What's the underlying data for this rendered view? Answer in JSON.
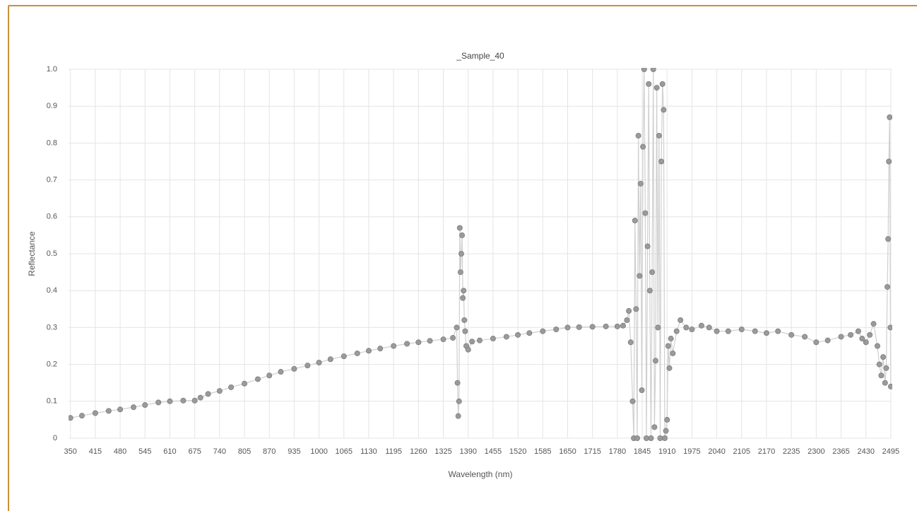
{
  "chart_data": {
    "type": "line",
    "title": "_Sample_40",
    "xlabel": "Wavelength (nm)",
    "ylabel": "Reflectance",
    "x": [
      350,
      380,
      415,
      450,
      480,
      515,
      545,
      580,
      610,
      645,
      675,
      690,
      710,
      740,
      770,
      805,
      840,
      870,
      900,
      935,
      970,
      1000,
      1030,
      1065,
      1100,
      1130,
      1160,
      1195,
      1230,
      1260,
      1290,
      1325,
      1350,
      1360,
      1362,
      1364,
      1366,
      1368,
      1370,
      1372,
      1374,
      1376,
      1378,
      1380,
      1382,
      1385,
      1390,
      1400,
      1420,
      1455,
      1490,
      1520,
      1550,
      1585,
      1620,
      1650,
      1680,
      1715,
      1750,
      1780,
      1795,
      1805,
      1810,
      1815,
      1820,
      1823,
      1826,
      1829,
      1832,
      1835,
      1838,
      1841,
      1844,
      1847,
      1850,
      1853,
      1856,
      1859,
      1862,
      1865,
      1868,
      1871,
      1874,
      1877,
      1880,
      1883,
      1886,
      1889,
      1892,
      1895,
      1898,
      1901,
      1904,
      1907,
      1910,
      1913,
      1916,
      1920,
      1925,
      1935,
      1945,
      1960,
      1975,
      2000,
      2020,
      2040,
      2070,
      2105,
      2140,
      2170,
      2200,
      2235,
      2270,
      2300,
      2330,
      2365,
      2390,
      2410,
      2420,
      2430,
      2440,
      2450,
      2460,
      2465,
      2470,
      2475,
      2480,
      2483,
      2486,
      2488,
      2490,
      2492,
      2494,
      2495
    ],
    "series": [
      {
        "color": "#9a9a9a",
        "line_color": "#cfcfcf",
        "values": [
          0.055,
          0.061,
          0.068,
          0.074,
          0.078,
          0.084,
          0.09,
          0.097,
          0.1,
          0.102,
          0.102,
          0.11,
          0.12,
          0.128,
          0.138,
          0.148,
          0.16,
          0.17,
          0.18,
          0.188,
          0.197,
          0.205,
          0.214,
          0.222,
          0.23,
          0.237,
          0.243,
          0.25,
          0.256,
          0.26,
          0.264,
          0.268,
          0.272,
          0.3,
          0.15,
          0.06,
          0.1,
          0.57,
          0.45,
          0.5,
          0.55,
          0.38,
          0.4,
          0.32,
          0.29,
          0.25,
          0.24,
          0.262,
          0.265,
          0.27,
          0.275,
          0.28,
          0.285,
          0.29,
          0.295,
          0.3,
          0.301,
          0.302,
          0.303,
          0.303,
          0.305,
          0.32,
          0.345,
          0.26,
          0.1,
          0.0,
          0.59,
          0.35,
          0.0,
          0.82,
          0.44,
          0.69,
          0.13,
          0.79,
          1.0,
          0.61,
          0.0,
          0.52,
          0.96,
          0.4,
          0.0,
          0.45,
          1.0,
          0.03,
          0.21,
          0.95,
          0.3,
          0.82,
          0.0,
          0.75,
          0.96,
          0.89,
          0.0,
          0.02,
          0.05,
          0.25,
          0.19,
          0.27,
          0.23,
          0.29,
          0.32,
          0.3,
          0.295,
          0.305,
          0.3,
          0.29,
          0.29,
          0.295,
          0.29,
          0.285,
          0.29,
          0.28,
          0.275,
          0.26,
          0.265,
          0.275,
          0.28,
          0.29,
          0.27,
          0.26,
          0.28,
          0.31,
          0.25,
          0.2,
          0.17,
          0.22,
          0.15,
          0.19,
          0.41,
          0.54,
          0.75,
          0.87,
          0.3,
          0.14
        ]
      }
    ],
    "xlim": [
      345,
      2497
    ],
    "xticks": [
      350,
      415,
      480,
      545,
      610,
      675,
      740,
      805,
      870,
      935,
      1000,
      1065,
      1130,
      1195,
      1260,
      1325,
      1390,
      1455,
      1520,
      1585,
      1650,
      1715,
      1780,
      1845,
      1910,
      1975,
      2040,
      2105,
      2170,
      2235,
      2300,
      2365,
      2430,
      2495
    ],
    "ylim": [
      0,
      1
    ],
    "yticks": [
      0,
      0.1,
      0.2,
      0.3,
      0.4,
      0.5,
      0.6,
      0.7,
      0.8,
      0.9,
      {
        "value": 1,
        "label": "1.0"
      }
    ],
    "grid": true
  }
}
